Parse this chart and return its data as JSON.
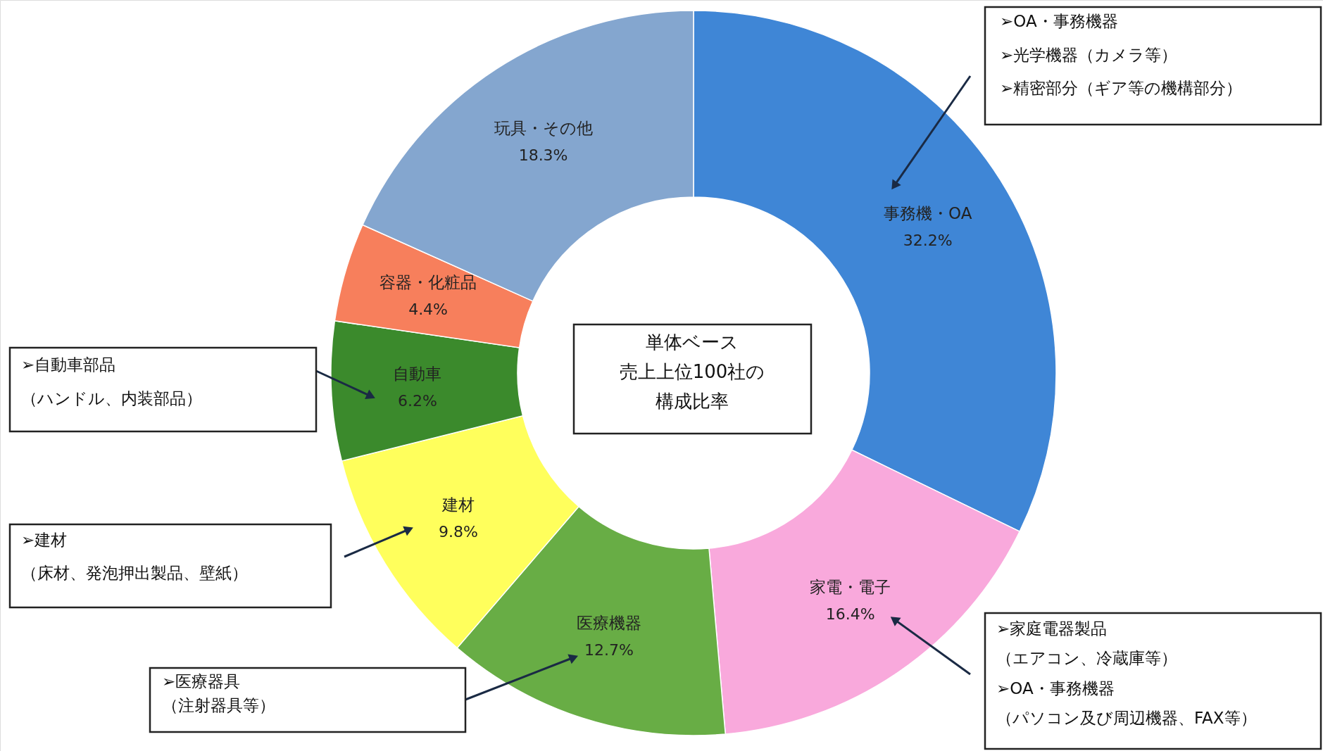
{
  "chart_data": {
    "type": "donut",
    "title": "単体ベース売上上位100社の構成比率",
    "categories": [
      "事務機・OA",
      "家電・電子",
      "医療機器",
      "建材",
      "自動車",
      "容器・化粧品",
      "玩具・その他"
    ],
    "values": [
      32.2,
      16.4,
      12.7,
      9.8,
      6.2,
      4.4,
      18.3
    ],
    "value_labels": [
      "32.2%",
      "16.4%",
      "12.7%",
      "9.8%",
      "6.2%",
      "4.4%",
      "18.3%"
    ],
    "colors": [
      "#3f86d6",
      "#f9a9dc",
      "#68ad45",
      "#ffff5c",
      "#3b8a2c",
      "#f77f5c",
      "#84a6cf"
    ],
    "annotations": [
      "➢OA・事務機器",
      "➢光学機器（カメラ等）",
      "➢精密部分（ギア等の機構部分）",
      "➢自動車部品",
      "（ハンドル、内装部品）",
      "➢建材",
      "（床材、発泡押出製品、壁紙）",
      "➢医療器具",
      "（注射器具等）",
      "➢家庭電器製品",
      "（エアコン、冷蔵庫等）",
      "➢OA・事務機器",
      "（パソコン及び周辺機器、FAX等）"
    ]
  }
}
